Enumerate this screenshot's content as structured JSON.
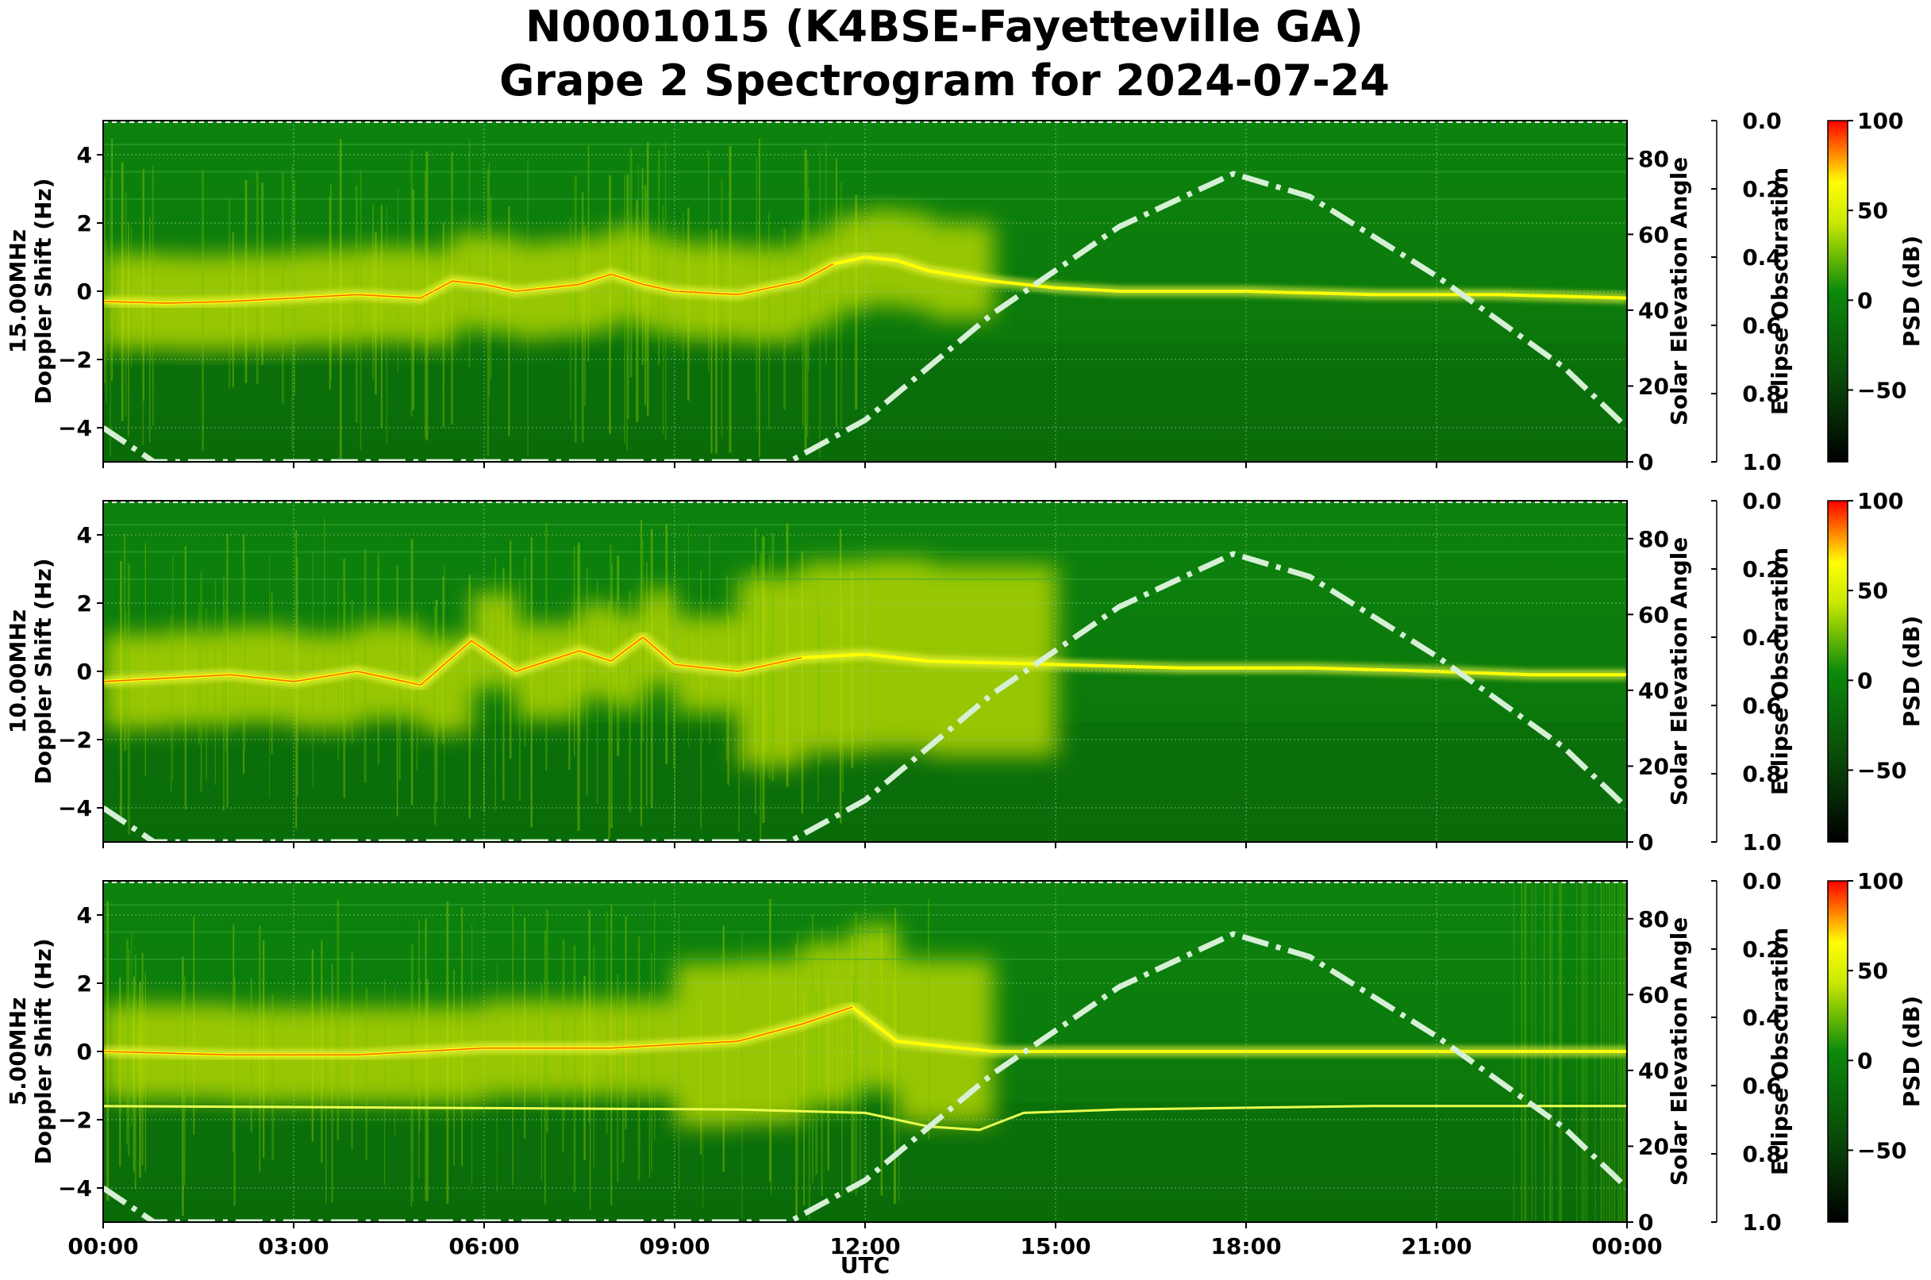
{
  "title": {
    "line1": "N0001015 (K4BSE-Fayetteville GA)",
    "line2": "Grape 2 Spectrogram for 2024-07-24"
  },
  "xlabel": "UTC",
  "colors": {
    "background_green": "#0b7a0b",
    "dark_green": "#0a3a0a",
    "yellow": "#ffff00",
    "red": "#ff2000",
    "solar_curve": "#d6f0d6",
    "grid": "#9fcf9f"
  },
  "chart_data": [
    {
      "type": "heatmap",
      "panel": "15.00MHz",
      "ylabel_top": "15.00MHz",
      "ylabel": "Doppler Shift (Hz)",
      "y2label": "Solar Elevation Angle",
      "y3label": "Eclipse Obscuration",
      "cbar_label": "PSD (dB)",
      "x_range": [
        "00:00",
        "24:00"
      ],
      "x_ticks": [
        "00:00",
        "03:00",
        "06:00",
        "09:00",
        "12:00",
        "15:00",
        "18:00",
        "21:00",
        "00:00"
      ],
      "ylim": [
        -5,
        5
      ],
      "y_ticks": [
        "4",
        "2",
        "0",
        "−2",
        "−4"
      ],
      "y2_ticks": [
        "80",
        "60",
        "40",
        "20",
        "0"
      ],
      "y3_ticks": [
        "0.0",
        "0.2",
        "0.4",
        "0.6",
        "0.8",
        "1.0"
      ],
      "cbar_ticks": [
        "100",
        "50",
        "0",
        "−50"
      ],
      "doppler_trace": [
        [
          0,
          -0.3
        ],
        [
          1,
          -0.35
        ],
        [
          2,
          -0.3
        ],
        [
          3,
          -0.2
        ],
        [
          4,
          -0.1
        ],
        [
          5,
          -0.2
        ],
        [
          5.5,
          0.3
        ],
        [
          6,
          0.2
        ],
        [
          6.5,
          0.0
        ],
        [
          7,
          0.1
        ],
        [
          7.5,
          0.2
        ],
        [
          8,
          0.5
        ],
        [
          8.5,
          0.2
        ],
        [
          9,
          0.0
        ],
        [
          10,
          -0.1
        ],
        [
          11,
          0.3
        ],
        [
          11.5,
          0.8
        ],
        [
          12,
          1.0
        ],
        [
          12.5,
          0.9
        ],
        [
          13,
          0.6
        ],
        [
          14,
          0.3
        ],
        [
          15,
          0.1
        ],
        [
          16,
          0.0
        ],
        [
          18,
          0.0
        ],
        [
          20,
          -0.1
        ],
        [
          22,
          -0.1
        ],
        [
          24,
          -0.2
        ]
      ],
      "solar_elevation": [
        [
          0,
          9
        ],
        [
          0.8,
          0
        ],
        [
          10.8,
          0
        ],
        [
          12,
          11
        ],
        [
          14,
          39
        ],
        [
          16,
          62
        ],
        [
          17.8,
          76
        ],
        [
          19,
          70
        ],
        [
          21,
          49
        ],
        [
          23,
          25
        ],
        [
          24,
          9
        ]
      ]
    },
    {
      "type": "heatmap",
      "panel": "10.00MHz",
      "ylabel_top": "10.00MHz",
      "ylabel": "Doppler Shift (Hz)",
      "y2label": "Solar Elevation Angle",
      "y3label": "Eclipse Obscuration",
      "cbar_label": "PSD (dB)",
      "x_range": [
        "00:00",
        "24:00"
      ],
      "x_ticks": [
        "00:00",
        "03:00",
        "06:00",
        "09:00",
        "12:00",
        "15:00",
        "18:00",
        "21:00",
        "00:00"
      ],
      "ylim": [
        -5,
        5
      ],
      "y_ticks": [
        "4",
        "2",
        "0",
        "−2",
        "−4"
      ],
      "y2_ticks": [
        "80",
        "60",
        "40",
        "20",
        "0"
      ],
      "y3_ticks": [
        "0.0",
        "0.2",
        "0.4",
        "0.6",
        "0.8",
        "1.0"
      ],
      "cbar_ticks": [
        "100",
        "50",
        "0",
        "−50"
      ],
      "doppler_trace": [
        [
          0,
          -0.3
        ],
        [
          1,
          -0.2
        ],
        [
          2,
          -0.1
        ],
        [
          3,
          -0.3
        ],
        [
          4,
          0.0
        ],
        [
          5,
          -0.4
        ],
        [
          5.8,
          0.9
        ],
        [
          6.5,
          0.0
        ],
        [
          7.5,
          0.6
        ],
        [
          8,
          0.3
        ],
        [
          8.5,
          1.0
        ],
        [
          9,
          0.2
        ],
        [
          10,
          0.0
        ],
        [
          11,
          0.4
        ],
        [
          12,
          0.5
        ],
        [
          13,
          0.3
        ],
        [
          15,
          0.2
        ],
        [
          17,
          0.1
        ],
        [
          19,
          0.1
        ],
        [
          21,
          0.0
        ],
        [
          22.5,
          -0.1
        ],
        [
          24,
          -0.1
        ]
      ],
      "solar_elevation": [
        [
          0,
          9
        ],
        [
          0.8,
          0
        ],
        [
          10.8,
          0
        ],
        [
          12,
          11
        ],
        [
          14,
          39
        ],
        [
          16,
          62
        ],
        [
          17.8,
          76
        ],
        [
          19,
          70
        ],
        [
          21,
          49
        ],
        [
          23,
          25
        ],
        [
          24,
          9
        ]
      ]
    },
    {
      "type": "heatmap",
      "panel": "5.00MHz",
      "ylabel_top": "5.00MHz",
      "ylabel": "Doppler Shift (Hz)",
      "y2label": "Solar Elevation Angle",
      "y3label": "Eclipse Obscuration",
      "cbar_label": "PSD (dB)",
      "x_range": [
        "00:00",
        "24:00"
      ],
      "x_ticks": [
        "00:00",
        "03:00",
        "06:00",
        "09:00",
        "12:00",
        "15:00",
        "18:00",
        "21:00",
        "00:00"
      ],
      "ylim": [
        -5,
        5
      ],
      "y_ticks": [
        "4",
        "2",
        "0",
        "−2",
        "−4"
      ],
      "y2_ticks": [
        "80",
        "60",
        "40",
        "20",
        "0"
      ],
      "y3_ticks": [
        "0.0",
        "0.2",
        "0.4",
        "0.6",
        "0.8",
        "1.0"
      ],
      "cbar_ticks": [
        "100",
        "50",
        "0",
        "−50"
      ],
      "doppler_trace": [
        [
          0,
          0.0
        ],
        [
          2,
          -0.1
        ],
        [
          4,
          -0.1
        ],
        [
          6,
          0.1
        ],
        [
          8,
          0.1
        ],
        [
          9,
          0.2
        ],
        [
          10,
          0.3
        ],
        [
          11,
          0.8
        ],
        [
          11.8,
          1.3
        ],
        [
          12.5,
          0.3
        ],
        [
          14,
          0.0
        ],
        [
          18,
          0.0
        ],
        [
          24,
          0.0
        ]
      ],
      "secondary_trace": [
        [
          0,
          -1.6
        ],
        [
          10,
          -1.7
        ],
        [
          12,
          -1.8
        ],
        [
          13,
          -2.2
        ],
        [
          13.8,
          -2.3
        ],
        [
          14.5,
          -1.8
        ],
        [
          16,
          -1.7
        ],
        [
          20,
          -1.6
        ],
        [
          24,
          -1.6
        ]
      ],
      "solar_elevation": [
        [
          0,
          9
        ],
        [
          0.8,
          0
        ],
        [
          10.8,
          0
        ],
        [
          12,
          11
        ],
        [
          14,
          39
        ],
        [
          16,
          62
        ],
        [
          17.8,
          76
        ],
        [
          19,
          70
        ],
        [
          21,
          49
        ],
        [
          23,
          25
        ],
        [
          24,
          9
        ]
      ]
    }
  ]
}
